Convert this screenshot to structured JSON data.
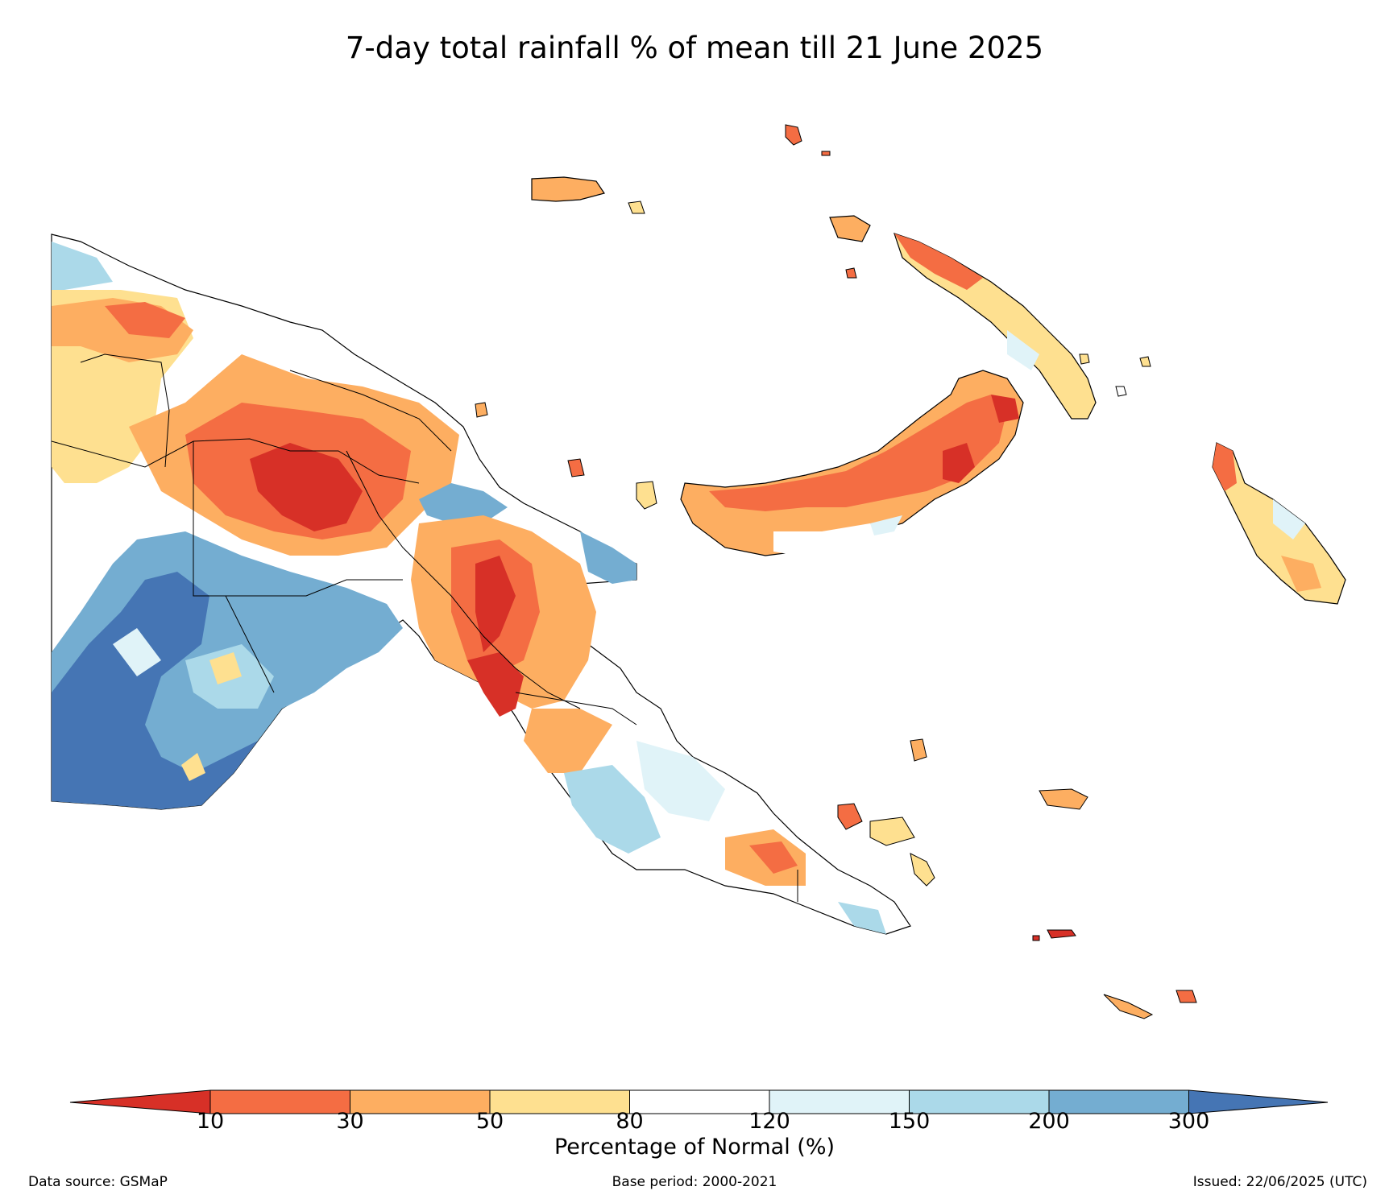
{
  "title": "7-day total rainfall % of mean till 21 June 2025",
  "colorbar": {
    "label": "Percentage of Normal (%)",
    "ticks": [
      "10",
      "30",
      "50",
      "80",
      "120",
      "150",
      "200",
      "300"
    ],
    "colors": [
      "#d73027",
      "#f46d43",
      "#fdae61",
      "#fee090",
      "#ffffff",
      "#e0f3f8",
      "#abd9e9",
      "#74add1",
      "#4575b4"
    ]
  },
  "footer": {
    "source": "Data source: GSMaP",
    "base_period": "Base period: 2000-2021",
    "issued": "Issued: 22/06/2025 (UTC)"
  }
}
